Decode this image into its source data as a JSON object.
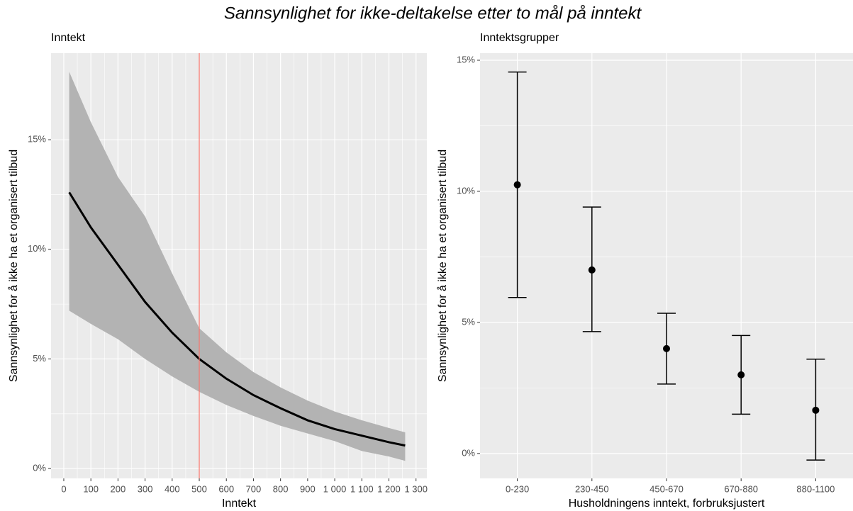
{
  "title": "Sannsynlighet for ikke-deltakelse etter to mål på inntekt",
  "chart_data": [
    {
      "type": "line",
      "subtitle": "Inntekt",
      "x_label": "Inntekt",
      "y_label": "Sannsynlighet for å ikke ha et organisert tilbud",
      "x": [
        20,
        100,
        200,
        300,
        400,
        500,
        600,
        700,
        800,
        900,
        1000,
        1100,
        1200,
        1260
      ],
      "values": [
        12.6,
        11.0,
        9.3,
        7.6,
        6.2,
        5.0,
        4.1,
        3.35,
        2.75,
        2.2,
        1.8,
        1.5,
        1.2,
        1.05
      ],
      "lower": [
        7.2,
        6.6,
        5.9,
        5.0,
        4.2,
        3.5,
        2.9,
        2.4,
        1.95,
        1.6,
        1.25,
        0.8,
        0.55,
        0.35
      ],
      "upper": [
        18.1,
        15.8,
        13.3,
        11.5,
        8.9,
        6.4,
        5.3,
        4.4,
        3.7,
        3.1,
        2.6,
        2.2,
        1.85,
        1.65
      ],
      "color": "#000000",
      "band_color": "#b3b3b3",
      "vline": 500,
      "vline_color": "#f8766d",
      "xlim": [
        -47,
        1340
      ],
      "ylim": [
        -0.45,
        18.95
      ],
      "xticks": [
        0,
        100,
        200,
        300,
        400,
        500,
        600,
        700,
        800,
        900,
        {
          "value": 1000,
          "label": "1 000"
        },
        {
          "value": 1100,
          "label": "1 100"
        },
        {
          "value": 1200,
          "label": "1 200"
        },
        {
          "value": 1300,
          "label": "1 300"
        }
      ],
      "yticks": [
        {
          "value": 0,
          "label": "0%"
        },
        {
          "value": 5,
          "label": "5%"
        },
        {
          "value": 10,
          "label": "10%"
        },
        {
          "value": 15,
          "label": "15%"
        }
      ],
      "grid": true
    },
    {
      "type": "errorbar",
      "subtitle": "Inntektsgrupper",
      "x_label": "Husholdningens inntekt, forbruksjustert",
      "y_label": "Sannsynlighet for å ikke ha et organisert tilbud",
      "categories": [
        "0-230",
        "230-450",
        "450-670",
        "670-880",
        "880-1100"
      ],
      "values": [
        10.25,
        7.0,
        4.0,
        3.0,
        1.65
      ],
      "lower": [
        5.95,
        4.65,
        2.65,
        1.5,
        -0.25
      ],
      "upper": [
        14.55,
        9.4,
        5.35,
        4.5,
        3.6
      ],
      "color": "#000000",
      "ylim": [
        -0.95,
        15.27
      ],
      "yticks": [
        {
          "value": 0,
          "label": "0%"
        },
        {
          "value": 5,
          "label": "5%"
        },
        {
          "value": 10,
          "label": "10%"
        },
        {
          "value": 15,
          "label": "15%"
        }
      ],
      "grid": true
    }
  ]
}
